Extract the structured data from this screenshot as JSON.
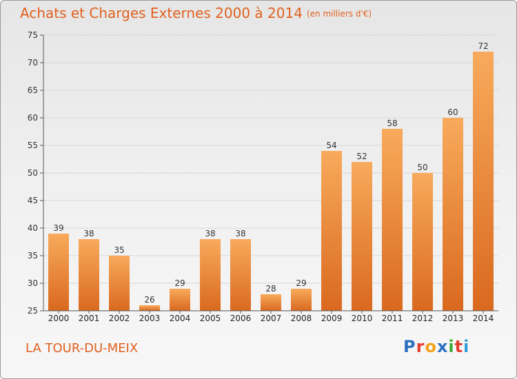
{
  "header": {
    "title": "Achats et Charges Externes 2000 à 2014",
    "unit": "(en milliers d'€)"
  },
  "footer": {
    "location": "LA TOUR-DU-MEIX",
    "brand_letters": [
      "P",
      "r",
      "o",
      "x",
      "i",
      "t",
      "i"
    ]
  },
  "colors": {
    "title": "#e0601e",
    "bar_light": "#f8aa5c",
    "bar_dark": "#d9691f",
    "grid": "#d7d7d7",
    "axis": "#555555",
    "brand": [
      "#2d6fbf",
      "#e23c2a",
      "#f2a21c",
      "#2d6fbf",
      "#3aaa35",
      "#e23c2a",
      "#2d9bd7"
    ]
  },
  "chart_data": {
    "type": "bar",
    "title": "Achats et Charges Externes 2000 à 2014",
    "subtitle": "(en milliers d'€)",
    "categories": [
      "2000",
      "2001",
      "2002",
      "2003",
      "2004",
      "2005",
      "2006",
      "2007",
      "2008",
      "2009",
      "2010",
      "2011",
      "2012",
      "2013",
      "2014"
    ],
    "values": [
      39,
      38,
      35,
      26,
      29,
      38,
      38,
      28,
      29,
      54,
      52,
      58,
      50,
      60,
      72
    ],
    "ylim": [
      25,
      75
    ],
    "yticks": [
      25,
      30,
      35,
      40,
      45,
      50,
      55,
      60,
      65,
      70,
      75
    ],
    "grid": true,
    "legend": "none",
    "data_labels": true
  }
}
